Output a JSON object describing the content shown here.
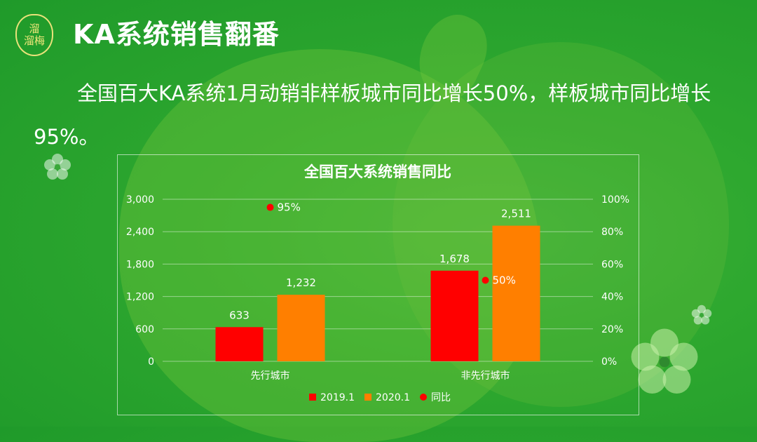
{
  "header": {
    "logo_lines": [
      "溜",
      "溜梅"
    ],
    "title": "KA系统销售翻番"
  },
  "body": {
    "paragraph": "全国百大KA系统1月动销非样板城市同比增长50%，样板城市同比增长95%。"
  },
  "chart_data": {
    "type": "bar",
    "title": "全国百大系统销售同比",
    "categories": [
      "先行城市",
      "非先行城市"
    ],
    "series": [
      {
        "name": "2019.1",
        "values": [
          633,
          1678
        ],
        "color": "#ff0000",
        "labels": [
          "633",
          "1,678"
        ]
      },
      {
        "name": "2020.1",
        "values": [
          1232,
          2511
        ],
        "color": "#ff7f00",
        "labels": [
          "1,232",
          "2,511"
        ]
      },
      {
        "name": "同比",
        "type": "scatter",
        "axis": "right",
        "values": [
          95,
          50
        ],
        "color": "#ff0000",
        "labels": [
          "95%",
          "50%"
        ]
      }
    ],
    "left_axis": {
      "ylim": [
        0,
        3000
      ],
      "ticks": [
        0,
        600,
        1200,
        1800,
        2400,
        3000
      ],
      "tick_labels": [
        "0",
        "600",
        "1,200",
        "1,800",
        "2,400",
        "3,000"
      ]
    },
    "right_axis": {
      "ylim": [
        0,
        100
      ],
      "ticks": [
        0,
        20,
        40,
        60,
        80,
        100
      ],
      "tick_labels": [
        "0%",
        "20%",
        "40%",
        "60%",
        "80%",
        "100%"
      ]
    },
    "legend_position": "bottom",
    "grid": true
  }
}
